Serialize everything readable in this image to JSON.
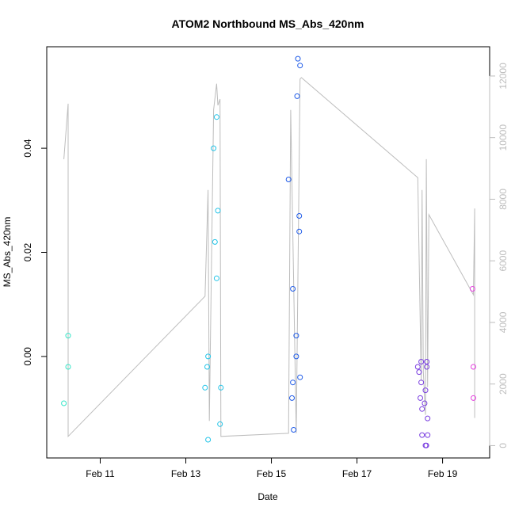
{
  "chart_data": {
    "type": "scatter",
    "title": "ATOM2 Northbound MS_Abs_420nm",
    "xlabel": "Date",
    "ylabel": "MS_Abs_420nm",
    "x_unit": "days (February, day of month)",
    "xlim": [
      9.75,
      20.1
    ],
    "ylim": [
      -0.0195,
      0.0595
    ],
    "y2lim": [
      -400,
      12950
    ],
    "x_ticks": [
      11,
      13,
      15,
      17,
      19
    ],
    "x_tick_labels": [
      "Feb 11",
      "Feb 13",
      "Feb 15",
      "Feb 17",
      "Feb 19"
    ],
    "y_ticks": [
      0.0,
      0.02,
      0.04
    ],
    "y_tick_labels": [
      "0.00",
      "0.02",
      "0.04"
    ],
    "y2_ticks": [
      0,
      2000,
      4000,
      6000,
      8000,
      10000,
      12000
    ],
    "y2_tick_labels": [
      "0",
      "2000",
      "4000",
      "6000",
      "8000",
      "10000",
      "12000"
    ],
    "grid": false,
    "legend": "none",
    "colors": {
      "line": "#bdbdbd",
      "axis_right": "#bdbdbd",
      "frame": "#000000"
    },
    "series": [
      {
        "color": "#35e6c8",
        "points": [
          [
            10.15,
            -0.009
          ],
          [
            10.25,
            -0.002
          ],
          [
            10.25,
            0.004
          ]
        ]
      },
      {
        "color": "#22c4e8",
        "points": [
          [
            13.45,
            -0.006
          ],
          [
            13.5,
            -0.002
          ],
          [
            13.52,
            0.0
          ],
          [
            13.52,
            -0.016
          ],
          [
            13.65,
            0.04
          ],
          [
            13.68,
            0.022
          ],
          [
            13.72,
            0.015
          ],
          [
            13.72,
            0.046
          ],
          [
            13.75,
            0.028
          ],
          [
            13.8,
            -0.013
          ],
          [
            13.82,
            -0.006
          ]
        ]
      },
      {
        "color": "#1f5be8",
        "points": [
          [
            15.4,
            0.034
          ],
          [
            15.48,
            -0.008
          ],
          [
            15.5,
            0.013
          ],
          [
            15.5,
            -0.005
          ],
          [
            15.52,
            -0.0141
          ],
          [
            15.58,
            0.004
          ],
          [
            15.58,
            0.0
          ],
          [
            15.6,
            0.05
          ],
          [
            15.62,
            0.0572
          ],
          [
            15.65,
            0.027
          ],
          [
            15.65,
            0.024
          ],
          [
            15.67,
            -0.004
          ],
          [
            15.67,
            0.0559
          ]
        ]
      },
      {
        "color": "#7a3ee0",
        "points": [
          [
            18.42,
            -0.002
          ],
          [
            18.45,
            -0.003
          ],
          [
            18.48,
            -0.008
          ],
          [
            18.5,
            -0.001
          ],
          [
            18.5,
            -0.005
          ],
          [
            18.52,
            -0.0101
          ],
          [
            18.52,
            -0.0151
          ],
          [
            18.58,
            -0.009
          ],
          [
            18.6,
            -0.0171
          ],
          [
            18.6,
            -0.0065
          ],
          [
            18.62,
            -0.0171
          ],
          [
            18.63,
            -0.001
          ],
          [
            18.63,
            -0.002
          ],
          [
            18.65,
            -0.0119
          ],
          [
            18.65,
            -0.0151
          ]
        ]
      },
      {
        "color": "#e63ee0",
        "points": [
          [
            19.7,
            0.013
          ],
          [
            19.72,
            -0.002
          ],
          [
            19.72,
            -0.008
          ]
        ]
      }
    ],
    "line_series": {
      "axis": "right",
      "points": [
        [
          10.15,
          9300
        ],
        [
          10.25,
          11100
        ],
        [
          10.25,
          300
        ],
        [
          13.45,
          4850
        ],
        [
          13.52,
          8300
        ],
        [
          13.55,
          800
        ],
        [
          13.65,
          10900
        ],
        [
          13.72,
          11750
        ],
        [
          13.75,
          11050
        ],
        [
          13.8,
          11250
        ],
        [
          13.82,
          300
        ],
        [
          15.4,
          400
        ],
        [
          15.45,
          10900
        ],
        [
          15.58,
          400
        ],
        [
          15.67,
          11900
        ],
        [
          15.7,
          11950
        ],
        [
          18.42,
          8700
        ],
        [
          18.5,
          2100
        ],
        [
          18.52,
          8300
        ],
        [
          18.55,
          2400
        ],
        [
          18.6,
          1000
        ],
        [
          18.62,
          9300
        ],
        [
          18.65,
          1900
        ],
        [
          18.68,
          7500
        ],
        [
          19.72,
          4900
        ],
        [
          19.75,
          7700
        ],
        [
          19.75,
          900
        ]
      ]
    }
  }
}
